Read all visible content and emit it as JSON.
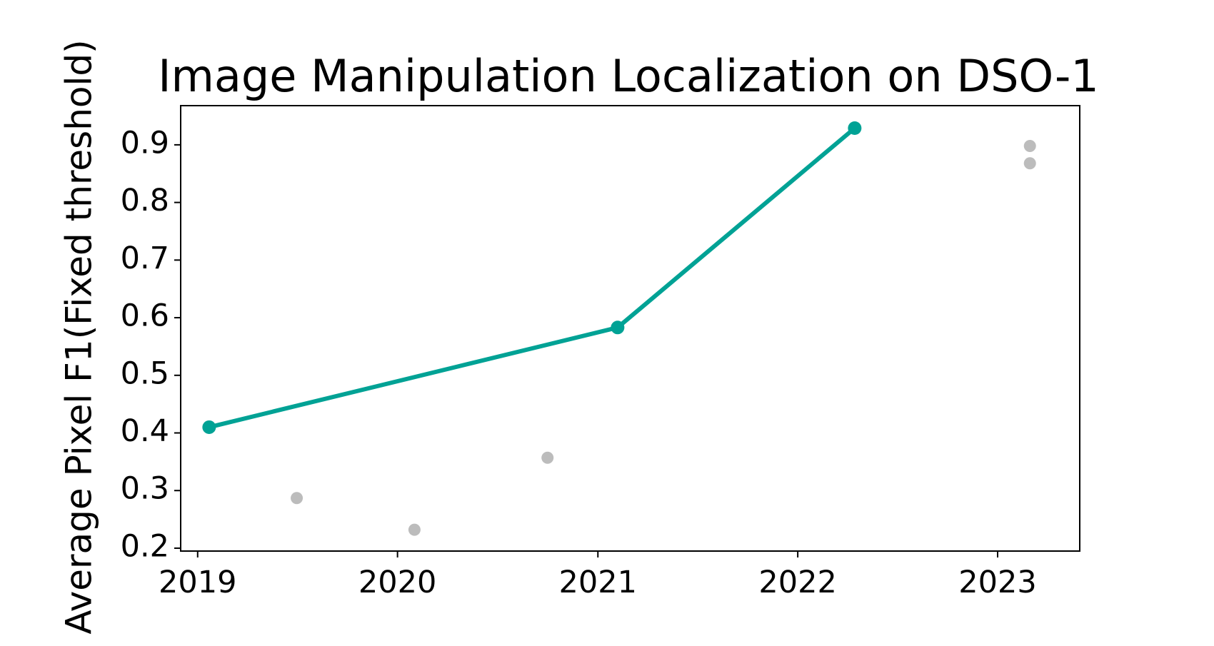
{
  "chart_data": {
    "type": "line",
    "title": "Image Manipulation Localization on DSO-1",
    "xlabel": "",
    "ylabel": "Average Pixel F1(Fixed threshold)",
    "xlim": [
      "2018-12-01",
      "2023-05-31"
    ],
    "ylim": [
      0.195,
      0.968
    ],
    "xticks": [
      "2019",
      "2020",
      "2021",
      "2022",
      "2023"
    ],
    "yticks": [
      "0.2",
      "0.3",
      "0.4",
      "0.5",
      "0.6",
      "0.7",
      "0.8",
      "0.9"
    ],
    "grid": false,
    "legend": "none",
    "series": [
      {
        "role": "sota-line",
        "color": "#00a295",
        "points": [
          {
            "x": "2019-01-22",
            "y": 0.41
          },
          {
            "x": "2021-02-06",
            "y": 0.583
          },
          {
            "x": "2022-04-15",
            "y": 0.929
          }
        ]
      },
      {
        "role": "other-results",
        "color": "#bcbcbc",
        "points": [
          {
            "x": "2019-07-01",
            "y": 0.287
          },
          {
            "x": "2020-02-01",
            "y": 0.232
          },
          {
            "x": "2020-10-01",
            "y": 0.357
          },
          {
            "x": "2023-03-01",
            "y": 0.898
          },
          {
            "x": "2023-03-01",
            "y": 0.868
          }
        ]
      }
    ]
  }
}
